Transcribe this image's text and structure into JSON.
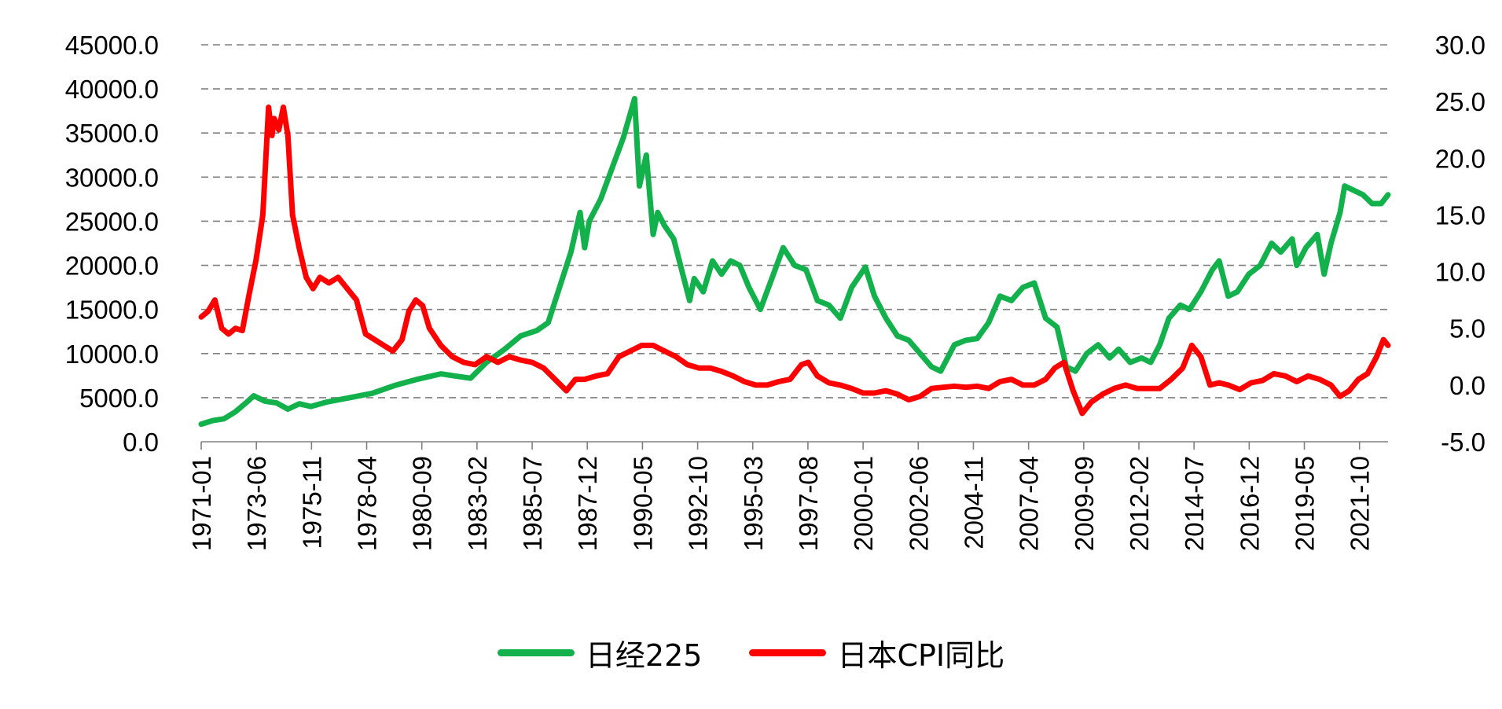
{
  "chart_data": {
    "type": "line",
    "title": "",
    "xlabel": "",
    "ylabel": "",
    "y2label": "",
    "grid": true,
    "legend_position": "bottom",
    "ylim": [
      0,
      45000
    ],
    "y2lim": [
      -5,
      30
    ],
    "xlim": [
      1971.0,
      2023.0
    ],
    "yticks": [
      "0.0",
      "5000.0",
      "10000.0",
      "15000.0",
      "20000.0",
      "25000.0",
      "30000.0",
      "35000.0",
      "40000.0",
      "45000.0"
    ],
    "y2ticks": [
      "-5.0",
      "0.0",
      "5.0",
      "10.0",
      "15.0",
      "20.0",
      "25.0",
      "30.0"
    ],
    "xticks": [
      "1971-01",
      "1973-06",
      "1975-11",
      "1978-04",
      "1980-09",
      "1983-02",
      "1985-07",
      "1987-12",
      "1990-05",
      "1992-10",
      "1995-03",
      "1997-08",
      "2000-01",
      "2002-06",
      "2004-11",
      "2007-04",
      "2009-09",
      "2012-02",
      "2014-07",
      "2016-12",
      "2019-05",
      "2021-10"
    ],
    "series": [
      {
        "name": "日经225",
        "axis": "left",
        "color": "#12b14b",
        "x": [
          1971.0,
          1971.5,
          1972.0,
          1972.5,
          1973.0,
          1973.3,
          1973.8,
          1974.3,
          1974.8,
          1975.3,
          1975.8,
          1976.5,
          1977.5,
          1978.5,
          1979.5,
          1980.5,
          1981.5,
          1982.0,
          1982.8,
          1983.5,
          1984.3,
          1985.0,
          1985.7,
          1986.2,
          1986.7,
          1987.2,
          1987.6,
          1987.8,
          1988.0,
          1988.5,
          1989.0,
          1989.5,
          1989.99,
          1990.2,
          1990.5,
          1990.8,
          1991.0,
          1991.3,
          1991.7,
          1992.0,
          1992.4,
          1992.6,
          1993.0,
          1993.4,
          1993.8,
          1994.2,
          1994.6,
          1995.0,
          1995.5,
          1996.0,
          1996.5,
          1997.0,
          1997.5,
          1998.0,
          1998.5,
          1999.0,
          1999.5,
          2000.1,
          2000.5,
          2001.0,
          2001.5,
          2002.0,
          2002.5,
          2003.0,
          2003.4,
          2004.0,
          2004.5,
          2005.0,
          2005.5,
          2006.0,
          2006.5,
          2007.0,
          2007.5,
          2008.0,
          2008.5,
          2008.9,
          2009.3,
          2009.8,
          2010.3,
          2010.8,
          2011.2,
          2011.7,
          2012.2,
          2012.6,
          2013.0,
          2013.4,
          2013.9,
          2014.3,
          2014.8,
          2015.3,
          2015.6,
          2016.0,
          2016.4,
          2016.9,
          2017.4,
          2017.9,
          2018.3,
          2018.8,
          2019.0,
          2019.4,
          2019.9,
          2020.2,
          2020.5,
          2020.9,
          2021.1,
          2021.5,
          2021.9,
          2022.3,
          2022.7,
          2023.0
        ],
        "y": [
          2000,
          2400,
          2600,
          3400,
          4500,
          5200,
          4600,
          4400,
          3700,
          4300,
          4000,
          4500,
          5000,
          5500,
          6400,
          7100,
          7700,
          7500,
          7200,
          9000,
          10500,
          12000,
          12600,
          13500,
          17500,
          21500,
          26000,
          22000,
          25000,
          27500,
          31000,
          34500,
          38900,
          29000,
          32500,
          23500,
          26000,
          24500,
          23000,
          20000,
          16000,
          18500,
          17000,
          20500,
          19000,
          20500,
          20000,
          17500,
          15000,
          18500,
          22000,
          20000,
          19500,
          16000,
          15500,
          14000,
          17500,
          19800,
          16500,
          14000,
          12000,
          11500,
          10000,
          8500,
          8000,
          11000,
          11500,
          11700,
          13500,
          16500,
          16000,
          17500,
          18000,
          14000,
          13000,
          8500,
          8000,
          10000,
          11000,
          9500,
          10500,
          9000,
          9500,
          9000,
          11000,
          14000,
          15500,
          15000,
          17000,
          19500,
          20500,
          16500,
          17000,
          19000,
          20000,
          22500,
          21500,
          23000,
          20000,
          22000,
          23500,
          19000,
          22500,
          26000,
          29000,
          28500,
          28000,
          27000,
          27000,
          28000
        ]
      },
      {
        "name": "日本CPI同比",
        "axis": "right",
        "color": "#ff0000",
        "x": [
          1971.0,
          1971.3,
          1971.6,
          1971.9,
          1972.2,
          1972.5,
          1972.8,
          1973.1,
          1973.4,
          1973.7,
          1973.95,
          1974.1,
          1974.2,
          1974.4,
          1974.6,
          1974.8,
          1975.0,
          1975.3,
          1975.6,
          1975.9,
          1976.2,
          1976.6,
          1977.0,
          1977.4,
          1977.8,
          1978.2,
          1978.6,
          1979.0,
          1979.4,
          1979.8,
          1980.1,
          1980.4,
          1980.7,
          1981.0,
          1981.5,
          1982.0,
          1982.5,
          1983.0,
          1983.5,
          1984.0,
          1984.5,
          1985.0,
          1985.5,
          1986.0,
          1986.5,
          1987.0,
          1987.4,
          1987.8,
          1988.3,
          1988.8,
          1989.3,
          1989.8,
          1990.3,
          1990.8,
          1991.3,
          1991.8,
          1992.3,
          1992.8,
          1993.3,
          1993.8,
          1994.3,
          1994.8,
          1995.3,
          1995.8,
          1996.3,
          1996.8,
          1997.3,
          1997.6,
          1998.0,
          1998.5,
          1999.0,
          1999.5,
          2000.0,
          2000.5,
          2001.0,
          2001.5,
          2002.0,
          2002.5,
          2003.0,
          2003.5,
          2004.0,
          2004.5,
          2005.0,
          2005.5,
          2006.0,
          2006.5,
          2007.0,
          2007.5,
          2008.0,
          2008.4,
          2008.8,
          2009.2,
          2009.6,
          2010.0,
          2010.5,
          2011.0,
          2011.5,
          2012.0,
          2012.5,
          2013.0,
          2013.5,
          2014.0,
          2014.4,
          2014.8,
          2015.2,
          2015.6,
          2016.0,
          2016.5,
          2017.0,
          2017.5,
          2018.0,
          2018.5,
          2019.0,
          2019.5,
          2020.0,
          2020.5,
          2020.9,
          2021.3,
          2021.7,
          2022.1,
          2022.5,
          2022.8,
          2023.0
        ],
        "y": [
          6.0,
          6.5,
          7.5,
          5.0,
          4.5,
          5.0,
          4.8,
          8.0,
          11.0,
          15.0,
          24.5,
          22.0,
          23.5,
          22.5,
          24.5,
          22.0,
          15.0,
          12.0,
          9.5,
          8.5,
          9.5,
          9.0,
          9.5,
          8.5,
          7.5,
          4.5,
          4.0,
          3.5,
          3.0,
          4.0,
          6.5,
          7.5,
          7.0,
          5.0,
          3.5,
          2.5,
          2.0,
          1.8,
          2.5,
          2.0,
          2.5,
          2.2,
          2.0,
          1.5,
          0.5,
          -0.5,
          0.5,
          0.5,
          0.8,
          1.0,
          2.5,
          3.0,
          3.5,
          3.5,
          3.0,
          2.5,
          1.8,
          1.5,
          1.5,
          1.2,
          0.8,
          0.3,
          0.0,
          0.0,
          0.3,
          0.5,
          1.8,
          2.0,
          0.8,
          0.2,
          0.0,
          -0.3,
          -0.7,
          -0.7,
          -0.5,
          -0.8,
          -1.3,
          -1.0,
          -0.3,
          -0.2,
          -0.1,
          -0.2,
          -0.1,
          -0.3,
          0.3,
          0.5,
          0.0,
          0.0,
          0.5,
          1.5,
          2.0,
          -0.5,
          -2.5,
          -1.5,
          -0.8,
          -0.3,
          0.0,
          -0.3,
          -0.3,
          -0.3,
          0.5,
          1.5,
          3.5,
          2.5,
          0.0,
          0.2,
          0.0,
          -0.4,
          0.2,
          0.4,
          1.0,
          0.8,
          0.3,
          0.8,
          0.5,
          0.0,
          -1.0,
          -0.5,
          0.5,
          1.0,
          2.5,
          4.0,
          3.5
        ]
      }
    ]
  }
}
